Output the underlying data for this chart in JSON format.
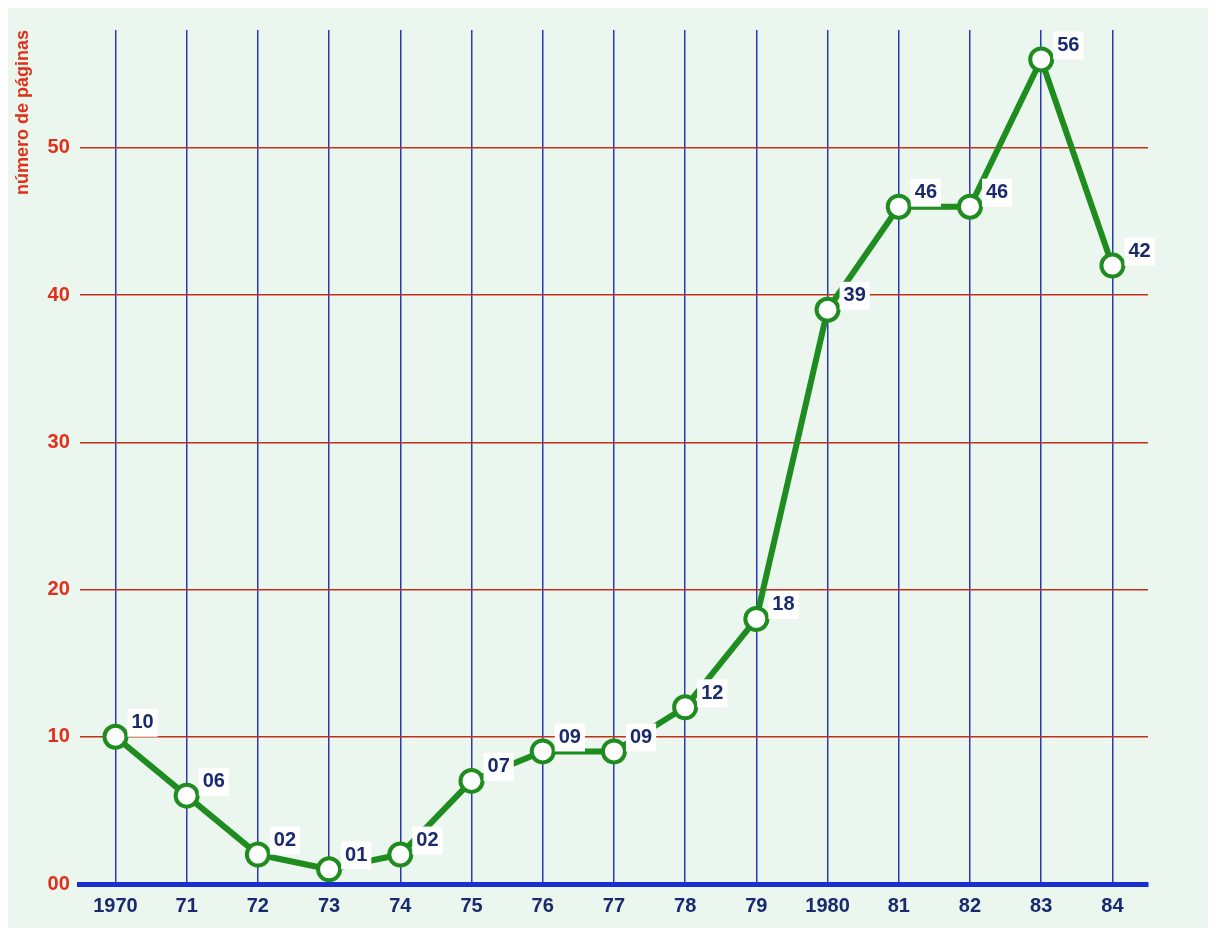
{
  "chart_data": {
    "type": "line",
    "ylabel": "número de páginas",
    "categories": [
      "1970",
      "71",
      "72",
      "73",
      "74",
      "75",
      "76",
      "77",
      "78",
      "79",
      "1980",
      "81",
      "82",
      "83",
      "84"
    ],
    "series": [
      {
        "color": "#1e8c1e",
        "values": [
          10,
          6,
          2,
          1,
          2,
          7,
          9,
          9,
          12,
          18,
          39,
          46,
          46,
          56,
          42
        ],
        "value_labels": [
          "10",
          "06",
          "02",
          "01",
          "02",
          "07",
          "09",
          "09",
          "12",
          "18",
          "39",
          "46",
          "46",
          "56",
          "42"
        ]
      }
    ],
    "ylim": [
      0,
      58
    ],
    "yticks": [
      {
        "value": 0,
        "label": "00"
      },
      10,
      20,
      30,
      40,
      50
    ],
    "grid": true,
    "legend": false,
    "marker": "circle",
    "line_style": "solid"
  }
}
